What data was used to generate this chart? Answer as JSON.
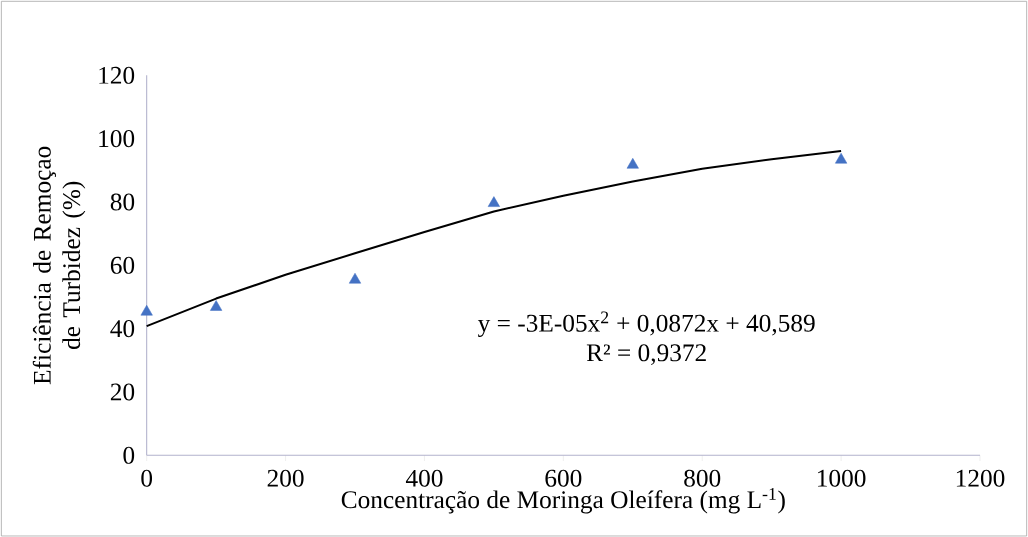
{
  "chart_data": {
    "type": "scatter",
    "xlabel": "Concentração de Moringa Oleífera (mg L$^{-1}$)",
    "ylabel": "Eficiência de Remoçao de Turbidez (%)",
    "xlim": [
      0,
      1200
    ],
    "xticks": [
      0,
      200,
      400,
      600,
      800,
      1000,
      1200
    ],
    "ylim": [
      0,
      120
    ],
    "yticks": [
      0,
      20,
      40,
      60,
      80,
      100,
      120
    ],
    "grid": false,
    "series": [
      {
        "color": "#4472c4",
        "marker": "triangle",
        "x": [
          0,
          100,
          300,
          500,
          700,
          1000
        ],
        "values": [
          45.3,
          46.8,
          55.4,
          79.6,
          91.7,
          93.3
        ]
      },
      {
        "type": "line",
        "color": "#000000",
        "marker": "none",
        "x": [
          0,
          100,
          200,
          300,
          400,
          500,
          600,
          700,
          800,
          900,
          1000
        ],
        "values": [
          40.8,
          49.5,
          57,
          63.8,
          70.5,
          77,
          82,
          86.5,
          90.5,
          93.5,
          96.1
        ]
      }
    ],
    "annotations": [
      "y = -3E-05x$^{2}$ + 0,0872x + 40,589",
      "R² = 0,9372"
    ]
  }
}
